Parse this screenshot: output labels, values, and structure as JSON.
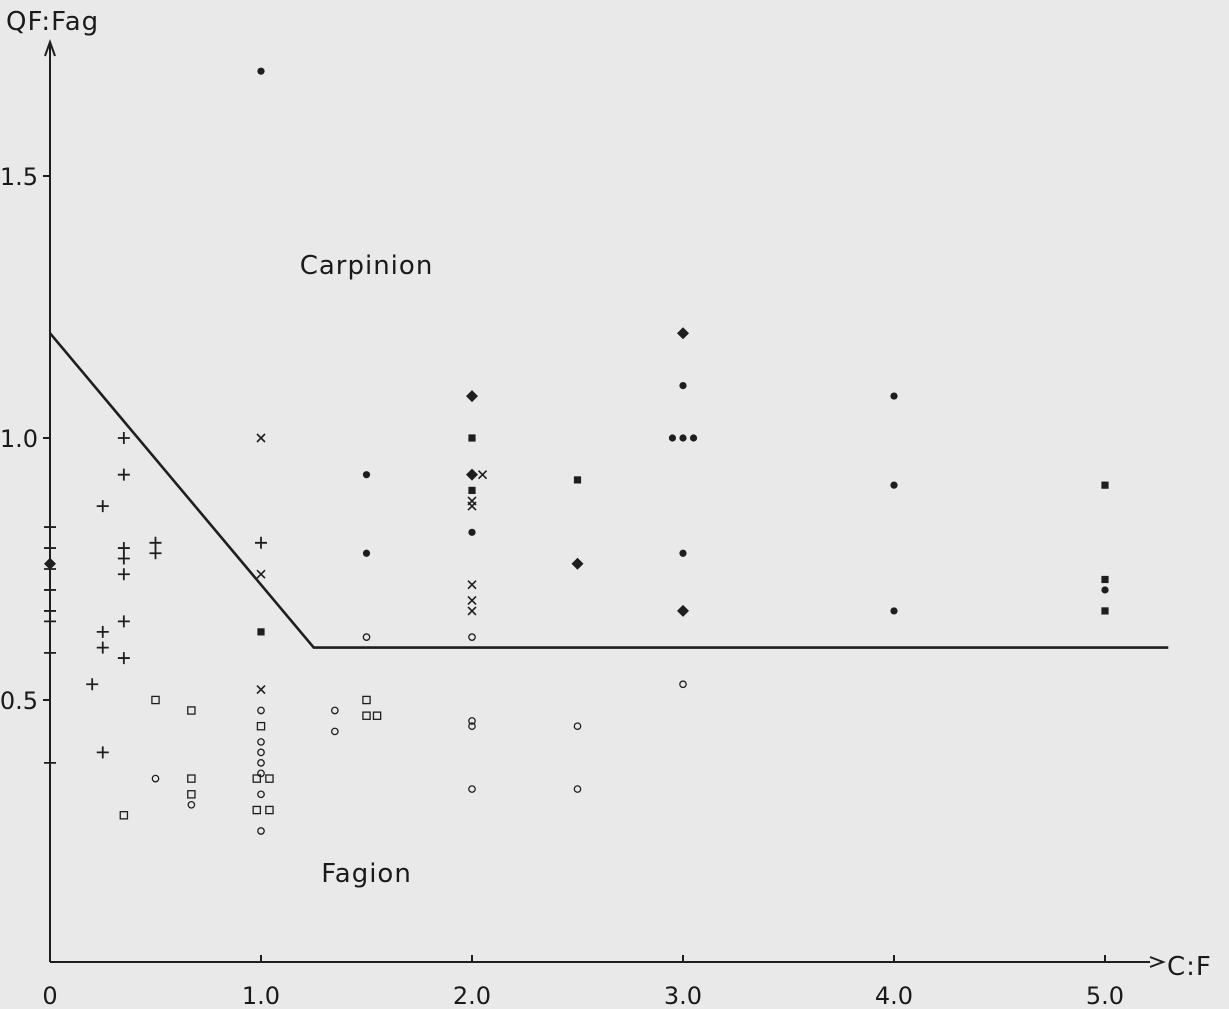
{
  "chart_data": {
    "type": "scatter",
    "xlabel": "C:F",
    "ylabel": "QF:Fag",
    "xlim": [
      0,
      5.3
    ],
    "ylim": [
      0,
      1.75
    ],
    "x_ticks": [
      {
        "value": 0,
        "label": "0"
      },
      {
        "value": 1.0,
        "label": "1.0"
      },
      {
        "value": 2.0,
        "label": "2.0"
      },
      {
        "value": 3.0,
        "label": "3.0"
      },
      {
        "value": 4.0,
        "label": "4.0"
      },
      {
        "value": 5.0,
        "label": "5.0"
      }
    ],
    "y_ticks": [
      {
        "value": 0.5,
        "label": "0.5"
      },
      {
        "value": 1.0,
        "label": "1.0"
      },
      {
        "value": 1.5,
        "label": "1.5"
      }
    ],
    "annotations": [
      {
        "text": "Carpinion",
        "x": 1.5,
        "y": 1.33
      },
      {
        "text": "Fagion",
        "x": 1.5,
        "y": 0.17
      }
    ],
    "boundary_line": [
      [
        0,
        1.2
      ],
      [
        1.25,
        0.6
      ],
      [
        5.3,
        0.6
      ]
    ],
    "series": [
      {
        "marker": "plus",
        "points": [
          [
            0,
            0.83
          ],
          [
            0,
            0.79
          ],
          [
            0,
            0.75
          ],
          [
            0,
            0.71
          ],
          [
            0,
            0.67
          ],
          [
            0,
            0.65
          ],
          [
            0,
            0.59
          ],
          [
            0,
            0.38
          ],
          [
            0.2,
            0.53
          ],
          [
            0.25,
            0.87
          ],
          [
            0.25,
            0.63
          ],
          [
            0.25,
            0.6
          ],
          [
            0.25,
            0.4
          ],
          [
            0.35,
            1.0
          ],
          [
            0.35,
            0.93
          ],
          [
            0.35,
            0.79
          ],
          [
            0.35,
            0.77
          ],
          [
            0.35,
            0.74
          ],
          [
            0.35,
            0.65
          ],
          [
            0.35,
            0.58
          ],
          [
            0.5,
            0.8
          ],
          [
            0.5,
            0.78
          ],
          [
            1.0,
            0.8
          ]
        ]
      },
      {
        "marker": "cross",
        "points": [
          [
            1.0,
            1.0
          ],
          [
            1.0,
            0.74
          ],
          [
            1.0,
            0.52
          ],
          [
            2.05,
            0.93
          ],
          [
            2.0,
            0.88
          ],
          [
            2.0,
            0.87
          ],
          [
            2.0,
            0.72
          ],
          [
            2.0,
            0.69
          ],
          [
            2.0,
            0.67
          ]
        ]
      },
      {
        "marker": "dot",
        "points": [
          [
            1.0,
            1.7
          ],
          [
            1.5,
            0.93
          ],
          [
            1.5,
            0.78
          ],
          [
            2.0,
            0.82
          ],
          [
            3.0,
            1.1
          ],
          [
            2.95,
            1.0
          ],
          [
            3.0,
            1.0
          ],
          [
            3.05,
            1.0
          ],
          [
            3.0,
            0.78
          ],
          [
            4.0,
            1.08
          ],
          [
            4.0,
            0.91
          ],
          [
            4.0,
            0.67
          ],
          [
            5.0,
            0.71
          ]
        ]
      },
      {
        "marker": "square-filled",
        "points": [
          [
            1.0,
            0.63
          ],
          [
            2.0,
            1.0
          ],
          [
            2.0,
            0.9
          ],
          [
            2.5,
            0.92
          ],
          [
            5.0,
            0.91
          ],
          [
            5.0,
            0.73
          ],
          [
            5.0,
            0.67
          ]
        ]
      },
      {
        "marker": "diamond-filled",
        "points": [
          [
            0,
            0.76
          ],
          [
            2.0,
            1.08
          ],
          [
            2.0,
            0.93
          ],
          [
            2.5,
            0.76
          ],
          [
            3.0,
            1.2
          ],
          [
            3.0,
            0.67
          ]
        ]
      },
      {
        "marker": "circle-open",
        "points": [
          [
            1.0,
            0.48
          ],
          [
            1.0,
            0.42
          ],
          [
            1.0,
            0.4
          ],
          [
            1.0,
            0.38
          ],
          [
            1.0,
            0.36
          ],
          [
            1.0,
            0.32
          ],
          [
            1.0,
            0.25
          ],
          [
            0.5,
            0.35
          ],
          [
            0.67,
            0.3
          ],
          [
            1.35,
            0.48
          ],
          [
            1.35,
            0.44
          ],
          [
            1.5,
            0.62
          ],
          [
            2.0,
            0.62
          ],
          [
            2.0,
            0.46
          ],
          [
            2.0,
            0.45
          ],
          [
            2.0,
            0.33
          ],
          [
            2.5,
            0.45
          ],
          [
            2.5,
            0.33
          ],
          [
            3.0,
            0.53
          ]
        ]
      },
      {
        "marker": "square-open",
        "points": [
          [
            0.35,
            0.28
          ],
          [
            0.5,
            0.5
          ],
          [
            0.67,
            0.48
          ],
          [
            0.67,
            0.35
          ],
          [
            0.67,
            0.32
          ],
          [
            1.0,
            0.45
          ],
          [
            0.98,
            0.35
          ],
          [
            1.04,
            0.35
          ],
          [
            0.98,
            0.29
          ],
          [
            1.04,
            0.29
          ],
          [
            1.5,
            0.5
          ],
          [
            1.5,
            0.47
          ],
          [
            1.55,
            0.47
          ]
        ]
      }
    ]
  }
}
